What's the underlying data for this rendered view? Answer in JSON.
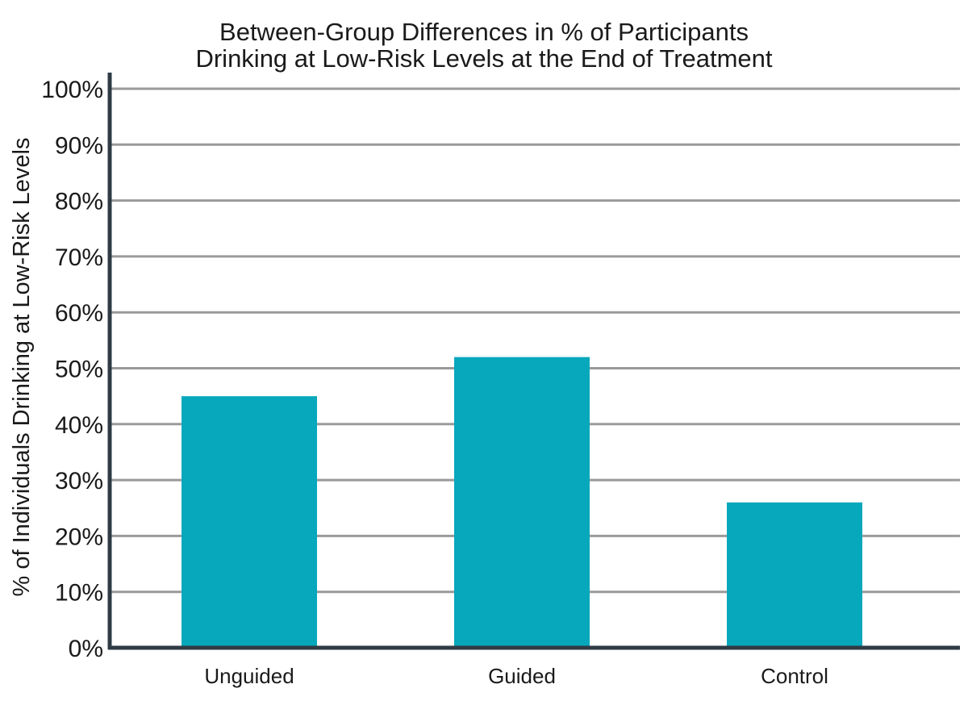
{
  "chart_data": {
    "type": "bar",
    "title": [
      "Between-Group Differences in % of Participants",
      "Drinking at Low-Risk Levels at the End of Treatment"
    ],
    "xlabel": "",
    "ylabel": "% of Individuals Drinking at Low-Risk Levels",
    "categories": [
      "Unguided",
      "Guided",
      "Control"
    ],
    "values": [
      45,
      52,
      26
    ],
    "ylim": [
      0,
      100
    ],
    "yticks": [
      0,
      10,
      20,
      30,
      40,
      50,
      60,
      70,
      80,
      90,
      100
    ],
    "ytick_labels": [
      "0%",
      "10%",
      "20%",
      "30%",
      "40%",
      "50%",
      "60%",
      "70%",
      "80%",
      "90%",
      "100%"
    ],
    "grid": true,
    "legend": "none",
    "colors": {
      "bar": "#07a8bc",
      "grid": "#9a9a9a",
      "axis": "#2f3b44"
    }
  }
}
